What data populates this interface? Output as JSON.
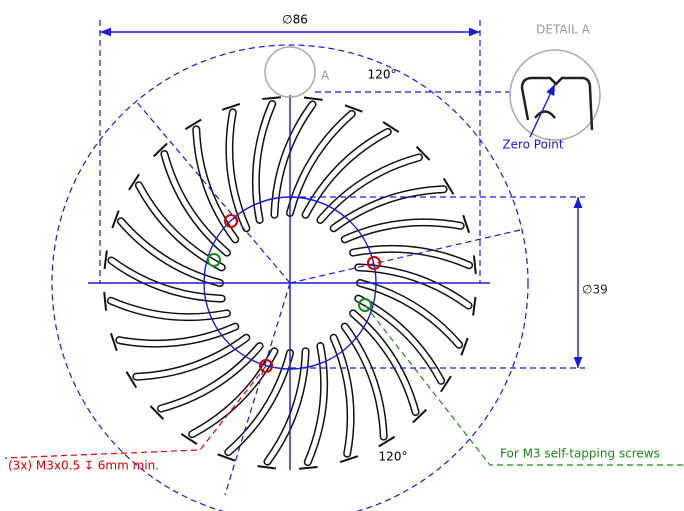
{
  "dimensions": {
    "outer_diameter": "∅86",
    "inner_diameter": "∅39",
    "angle_top": "120°",
    "angle_bottom": "120°"
  },
  "detail": {
    "title": "DETAIL A",
    "marker": "A",
    "zero_point": "Zero Point"
  },
  "notes": {
    "threaded_holes": "(3x) M3x0.5 ↧ 6mm min.",
    "screw_holes": "For M3 self-tapping screws"
  }
}
